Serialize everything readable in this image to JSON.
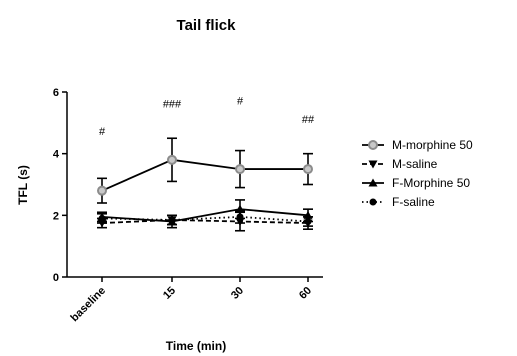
{
  "chart_data": {
    "type": "line",
    "title": "Tail flick",
    "xlabel": "Time (min)",
    "ylabel": "TFL (s)",
    "categories": [
      "baseline",
      "15",
      "30",
      "60"
    ],
    "ylim": [
      0,
      6
    ],
    "yticks": [
      0,
      2,
      4,
      6
    ],
    "legend_position": "right",
    "series": [
      {
        "name": "M-morphine 50",
        "values": [
          2.8,
          3.8,
          3.5,
          3.5
        ],
        "errors": [
          0.4,
          0.7,
          0.6,
          0.5
        ],
        "line_style": "solid",
        "marker": "circle-open",
        "color": "#000000",
        "marker_color": "#8c8c8c"
      },
      {
        "name": "M-saline",
        "values": [
          1.75,
          1.85,
          1.8,
          1.75
        ],
        "errors": [
          0.15,
          0.15,
          0.3,
          0.2
        ],
        "line_style": "dashed",
        "marker": "triangle-down",
        "color": "#000000",
        "marker_color": "#000000"
      },
      {
        "name": "F-Morphine 50",
        "values": [
          1.95,
          1.8,
          2.2,
          2.0
        ],
        "errors": [
          0.15,
          0.2,
          0.3,
          0.2
        ],
        "line_style": "solid",
        "marker": "triangle-up",
        "color": "#000000",
        "marker_color": "#000000"
      },
      {
        "name": "F-saline",
        "values": [
          1.9,
          1.85,
          1.95,
          1.8
        ],
        "errors": [
          0.15,
          0.15,
          0.2,
          0.15
        ],
        "line_style": "dotted",
        "marker": "circle",
        "color": "#000000",
        "marker_color": "#000000"
      }
    ],
    "annotations": [
      {
        "category": "baseline",
        "text": "#",
        "y": 4.6
      },
      {
        "category": "15",
        "text": "###",
        "y": 5.5
      },
      {
        "category": "30",
        "text": "#",
        "y": 5.6
      },
      {
        "category": "60",
        "text": "##",
        "y": 5.0
      }
    ]
  }
}
